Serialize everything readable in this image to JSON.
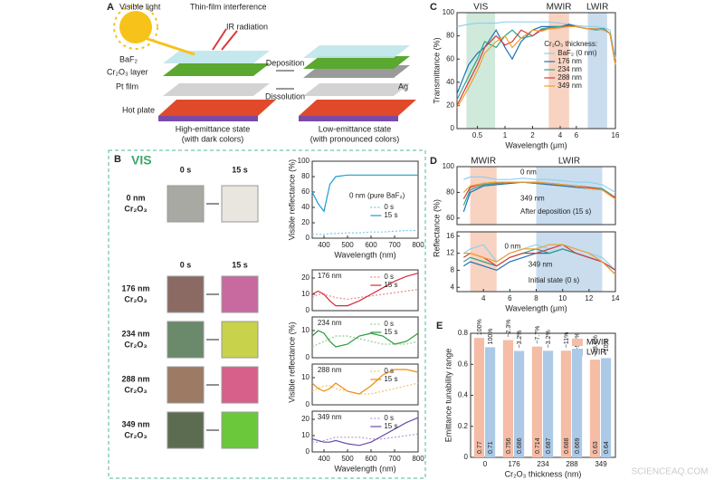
{
  "panel_a": {
    "label": "A",
    "visible_light": "Visible light",
    "interference": "Thin-film interference",
    "ir": "IR radiation",
    "baf2": "BaF₂",
    "cr2o3": "Cr₂O₃ layer",
    "pt": "Pt film",
    "hot_plate": "Hot plate",
    "high_state": "High-emittance state",
    "high_note": "(with dark colors)",
    "deposition": "Deposition",
    "dissolution": "Dissolution",
    "ag": "Ag",
    "low_state": "Low-emittance state",
    "low_note": "(with pronounced colors)"
  },
  "panel_b": {
    "label": "B",
    "title": "VIS",
    "columns": [
      "0 s",
      "15 s"
    ],
    "columns_lower": [
      "0 s",
      "15 s"
    ],
    "rows": [
      [
        "0 nm",
        "Cr₂O₃"
      ],
      [
        "176 nm",
        "Cr₂O₃"
      ],
      [
        "234 nm",
        "Cr₂O₃"
      ],
      [
        "288 nm",
        "Cr₂O₃"
      ],
      [
        "349 nm",
        "Cr₂O₃"
      ]
    ]
  },
  "watermark": "SCIENCEAQ.COM",
  "chart_data": [
    {
      "type": "line",
      "panel_label": "C",
      "ylabel": "Transmittance (%)",
      "xlabel": "Wavelength (μm)",
      "log_x": true,
      "x": [
        0.3,
        0.4,
        0.5,
        0.6,
        0.8,
        1,
        1.2,
        1.5,
        2,
        2.5,
        3,
        4,
        5,
        6,
        8,
        10,
        12,
        14,
        16
      ],
      "xlim": [
        0.3,
        16
      ],
      "xticks": [
        0.5,
        1,
        2,
        4,
        6,
        16
      ],
      "ylim": [
        0,
        100
      ],
      "yticks": [
        0,
        20,
        40,
        60,
        80,
        100
      ],
      "regions": [
        {
          "label": "VIS",
          "range": [
            0.38,
            0.78
          ],
          "color": "#cfeadb"
        },
        {
          "label": "MWIR",
          "range": [
            3,
            5
          ],
          "color": "#f8d3c2"
        },
        {
          "label": "LWIR",
          "range": [
            8,
            13
          ],
          "color": "#c9ddef"
        }
      ],
      "legend": "right",
      "legend_title": "Cr₂O₃ thickness:",
      "series": [
        {
          "name": "BaF₂ (0 nm)",
          "color": "#8fd0f0",
          "values": [
            88,
            90,
            91,
            91,
            91,
            92,
            92,
            92,
            92,
            92,
            92,
            91,
            90,
            89,
            88,
            88,
            87,
            85,
            60
          ]
        },
        {
          "name": "176 nm",
          "color": "#1f6fb8",
          "values": [
            30,
            55,
            65,
            70,
            85,
            70,
            60,
            75,
            85,
            88,
            88,
            88,
            90,
            88,
            86,
            86,
            86,
            82,
            55
          ]
        },
        {
          "name": "234 nm",
          "color": "#2ba58a",
          "values": [
            25,
            45,
            60,
            75,
            70,
            80,
            85,
            78,
            80,
            86,
            87,
            88,
            89,
            88,
            86,
            85,
            86,
            82,
            55
          ]
        },
        {
          "name": "288 nm",
          "color": "#d83a3a",
          "values": [
            20,
            40,
            55,
            70,
            80,
            72,
            75,
            85,
            80,
            85,
            86,
            87,
            89,
            88,
            86,
            86,
            85,
            82,
            55
          ]
        },
        {
          "name": "349 nm",
          "color": "#f0a030",
          "values": [
            18,
            35,
            50,
            65,
            75,
            80,
            70,
            78,
            85,
            84,
            86,
            87,
            88,
            88,
            86,
            86,
            85,
            82,
            55
          ]
        }
      ]
    },
    {
      "type": "line",
      "ylabel": "Visible reflectance (%)",
      "xlabel": "Wavelength (nm)",
      "x": [
        350,
        375,
        400,
        425,
        450,
        500,
        550,
        600,
        650,
        700,
        750,
        800
      ],
      "xlim": [
        350,
        800
      ],
      "xticks": [
        400,
        500,
        600,
        700,
        800
      ],
      "ylim": [
        0,
        100
      ],
      "yticks": [
        0,
        20,
        40,
        60,
        80,
        100
      ],
      "annotations": [
        "0 nm (pure BaF₂)"
      ],
      "legend": "right",
      "series": [
        {
          "name": "0 s",
          "color": "#7ec8ea",
          "dash": true,
          "values": [
            5,
            5,
            5,
            6,
            6,
            7,
            7,
            8,
            8,
            9,
            10,
            10
          ]
        },
        {
          "name": "15 s",
          "color": "#1f9ad6",
          "values": [
            60,
            45,
            35,
            70,
            80,
            82,
            82,
            82,
            82,
            82,
            82,
            82
          ]
        }
      ]
    },
    {
      "type": "line",
      "x": [
        350,
        375,
        400,
        425,
        450,
        500,
        550,
        600,
        650,
        700,
        750,
        800
      ],
      "xlim": [
        350,
        800
      ],
      "ylim": [
        0,
        25
      ],
      "yticks": [
        0,
        10,
        20
      ],
      "annotations": [
        "176 nm"
      ],
      "legend": "top",
      "series": [
        {
          "name": "0 s",
          "color": "#e88a8a",
          "dash": true,
          "values": [
            8,
            10,
            10,
            9,
            8,
            7,
            8,
            9,
            10,
            11,
            12,
            13
          ]
        },
        {
          "name": "15 s",
          "color": "#d42a3a",
          "values": [
            10,
            12,
            10,
            6,
            3,
            3,
            6,
            10,
            14,
            18,
            21,
            23
          ]
        }
      ]
    },
    {
      "type": "line",
      "ylabel": "Visible reflectance (%)",
      "x": [
        350,
        375,
        400,
        425,
        450,
        500,
        550,
        600,
        650,
        700,
        750,
        800
      ],
      "xlim": [
        350,
        800
      ],
      "ylim": [
        0,
        15
      ],
      "yticks": [
        0,
        10
      ],
      "annotations": [
        "234 nm"
      ],
      "legend": "top",
      "series": [
        {
          "name": "0 s",
          "color": "#8fd08f",
          "dash": true,
          "values": [
            4,
            5,
            6,
            7,
            8,
            8,
            7,
            6,
            5,
            5,
            5,
            6
          ]
        },
        {
          "name": "15 s",
          "color": "#2a9a3a",
          "values": [
            8,
            10,
            9,
            6,
            4,
            5,
            8,
            9,
            8,
            5,
            6,
            9
          ]
        }
      ]
    },
    {
      "type": "line",
      "x": [
        350,
        375,
        400,
        425,
        450,
        500,
        550,
        600,
        650,
        700,
        750,
        800
      ],
      "xlim": [
        350,
        800
      ],
      "ylim": [
        0,
        15
      ],
      "yticks": [
        0,
        10
      ],
      "annotations": [
        "288 nm"
      ],
      "legend": "top",
      "series": [
        {
          "name": "0 s",
          "color": "#f5c070",
          "dash": true,
          "values": [
            5,
            6,
            7,
            7,
            6,
            5,
            4,
            4,
            5,
            6,
            7,
            8
          ]
        },
        {
          "name": "15 s",
          "color": "#f08a10",
          "values": [
            8,
            6,
            5,
            6,
            8,
            5,
            4,
            7,
            11,
            13,
            13,
            12
          ]
        }
      ]
    },
    {
      "type": "line",
      "xlabel": "Wavelength (nm)",
      "x": [
        350,
        375,
        400,
        425,
        450,
        500,
        550,
        600,
        650,
        700,
        750,
        800
      ],
      "xlim": [
        350,
        800
      ],
      "xticks": [
        400,
        500,
        600,
        700,
        800
      ],
      "ylim": [
        0,
        25
      ],
      "yticks": [
        0,
        10,
        20
      ],
      "annotations": [
        "349 nm"
      ],
      "legend": "top",
      "series": [
        {
          "name": "0 s",
          "color": "#b0a0d8",
          "dash": true,
          "values": [
            6,
            6,
            7,
            8,
            9,
            9,
            9,
            8,
            8,
            9,
            10,
            11
          ]
        },
        {
          "name": "15 s",
          "color": "#6a4aa8",
          "values": [
            8,
            7,
            6,
            6,
            7,
            5,
            4,
            6,
            10,
            14,
            18,
            21
          ]
        }
      ]
    },
    {
      "type": "line",
      "panel_label": "D",
      "ylabel": "Reflectance (%)",
      "x": [
        2.5,
        3,
        4,
        5,
        6,
        7,
        8,
        9,
        10,
        11,
        12,
        13,
        14
      ],
      "xlim": [
        2,
        14
      ],
      "ylim": [
        55,
        100
      ],
      "yticks": [
        60,
        80,
        100
      ],
      "regions": [
        {
          "label": "MWIR",
          "range": [
            3,
            5
          ],
          "color": "#f8d3c2"
        },
        {
          "label": "LWIR",
          "range": [
            8,
            13
          ],
          "color": "#c9ddef"
        }
      ],
      "annotations": [
        "0 nm",
        "349 nm",
        "After deposition (15 s)"
      ],
      "series": [
        {
          "color": "#8fd0f0",
          "values": [
            90,
            92,
            92,
            90,
            90,
            91,
            90,
            90,
            89,
            88,
            88,
            86,
            80
          ]
        },
        {
          "color": "#1f6fb8",
          "values": [
            65,
            80,
            85,
            86,
            87,
            88,
            87,
            86,
            85,
            84,
            83,
            82,
            75
          ]
        },
        {
          "color": "#2ba58a",
          "values": [
            70,
            82,
            86,
            87,
            88,
            88,
            87,
            87,
            86,
            85,
            84,
            83,
            76
          ]
        },
        {
          "color": "#d83a3a",
          "values": [
            75,
            84,
            87,
            88,
            88,
            88,
            88,
            87,
            86,
            85,
            84,
            82,
            76
          ]
        },
        {
          "color": "#f0a030",
          "values": [
            80,
            85,
            87,
            88,
            88,
            88,
            88,
            87,
            86,
            85,
            83,
            82,
            75
          ]
        }
      ]
    },
    {
      "type": "line",
      "xlabel": "Wavelength (μm)",
      "x": [
        2.5,
        3,
        4,
        5,
        6,
        7,
        8,
        9,
        10,
        11,
        12,
        13,
        14
      ],
      "xlim": [
        2,
        14
      ],
      "xticks": [
        4,
        6,
        8,
        10,
        12,
        14
      ],
      "ylim": [
        3,
        17
      ],
      "yticks": [
        4,
        8,
        12,
        16
      ],
      "regions": [
        {
          "range": [
            3,
            5
          ],
          "color": "#f8d3c2"
        },
        {
          "range": [
            8,
            13
          ],
          "color": "#c9ddef"
        }
      ],
      "annotations": [
        "0 nm",
        "349 nm",
        "Initial state (0 s)"
      ],
      "series": [
        {
          "color": "#8fd0f0",
          "values": [
            12,
            13,
            14,
            10,
            12,
            13,
            14,
            13,
            14,
            13,
            12,
            11,
            8
          ]
        },
        {
          "color": "#1f6fb8",
          "values": [
            9,
            10,
            9,
            8,
            10,
            11,
            12,
            12,
            13,
            12,
            11,
            10,
            8
          ]
        },
        {
          "color": "#2ba58a",
          "values": [
            10,
            11,
            10,
            9,
            11,
            12,
            13,
            12,
            13,
            12,
            11,
            10,
            7
          ]
        },
        {
          "color": "#d83a3a",
          "values": [
            11,
            12,
            11,
            9,
            11,
            12,
            12,
            13,
            14,
            12,
            11,
            10,
            8
          ]
        },
        {
          "color": "#f0a030",
          "values": [
            12,
            12,
            11,
            10,
            12,
            13,
            13,
            14,
            14,
            13,
            12,
            10,
            7
          ]
        }
      ]
    },
    {
      "type": "bar",
      "panel_label": "E",
      "ylabel": "Emittance tunability range",
      "xlabel": "Cr₂O₃ thickness (nm)",
      "categories": [
        "0",
        "176",
        "234",
        "288",
        "349"
      ],
      "ylim": [
        0,
        0.8
      ],
      "yticks": [
        0,
        0.2,
        0.4,
        0.6,
        0.8
      ],
      "legend": "upper right",
      "series": [
        {
          "name": "MWIR",
          "color": "#f5bca6",
          "values": [
            0.77,
            0.756,
            0.714,
            0.688,
            0.63
          ],
          "change_labels": [
            "100%",
            "−2.3%",
            "−7.7%",
            "−11%",
            "−18.6%"
          ]
        },
        {
          "name": "LWIR",
          "color": "#acc9e6",
          "values": [
            0.71,
            0.686,
            0.687,
            0.669,
            0.64
          ],
          "change_labels": [
            "100%",
            "−3.2%",
            "−3.2%",
            "−5.8%",
            "−10%"
          ]
        }
      ]
    }
  ]
}
